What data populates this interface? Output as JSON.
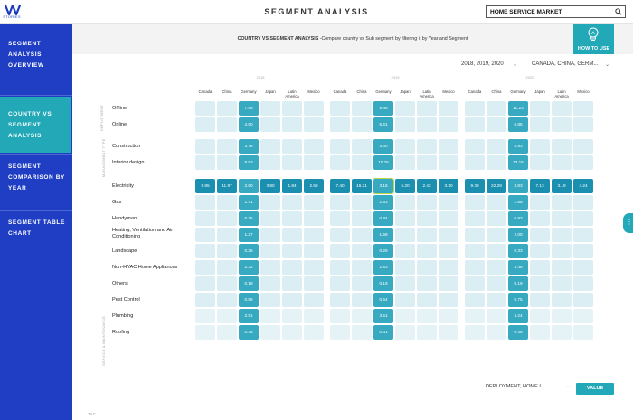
{
  "app": {
    "logo_sub": "STORIES",
    "page_title": "SEGMENT ANALYSIS",
    "market": "HOME SERVICE MARKET"
  },
  "colors": {
    "sidebar": "#1f3ec4",
    "accent": "#22a8b7",
    "cell_light": "#daeef3",
    "cell_highlight": "#37aac1"
  },
  "sidebar": {
    "items": [
      {
        "label": "SEGMENT ANALYSIS OVERVIEW",
        "lines": [
          "SEGMENT",
          "ANALYSIS",
          "OVERVIEW"
        ],
        "active": false
      },
      {
        "label": "COUNTRY VS SEGMENT ANALYSIS",
        "lines": [
          "COUNTRY VS",
          "SEGMENT",
          "ANALYSIS"
        ],
        "active": true
      },
      {
        "label": "SEGMENT COMPARISON BY YEAR",
        "lines": [
          "SEGMENT",
          "COMPARISON BY",
          "YEAR"
        ],
        "active": false
      },
      {
        "label": "SEGMENT TABLE CHART",
        "lines": [
          "SEGMENT TABLE",
          "CHART"
        ],
        "active": false
      }
    ]
  },
  "header": {
    "title_bold": "COUNTRY VS SEGMENT ANALYSIS",
    "title_rest": " -Compare country vs Sub segment by filtering it by Year and Segment",
    "how_to_use": "HOW TO USE"
  },
  "filters": {
    "years": "2018, 2019, 2020",
    "countries": "CANADA, CHINA, GERM..."
  },
  "matrix": {
    "years": [
      "2018",
      "2019",
      "2020"
    ],
    "countries": [
      "Canada",
      "China",
      "Germany",
      "Japan",
      "Latin America",
      "Mexico"
    ],
    "groups": [
      "DEPLOYMENT",
      "MANAGEMENT TYPE",
      "SERVICE & MAINTENANCE"
    ],
    "rows": [
      {
        "label": "Offline",
        "values": [
          [
            null,
            null,
            "7.99",
            null,
            null,
            null
          ],
          [
            null,
            null,
            "9.46",
            null,
            null,
            null
          ],
          [
            null,
            null,
            "11.23",
            null,
            null,
            null
          ]
        ]
      },
      {
        "label": "Online",
        "values": [
          [
            null,
            null,
            "4.60",
            null,
            null,
            null
          ],
          [
            null,
            null,
            "5.61",
            null,
            null,
            null
          ],
          [
            null,
            null,
            "6.85",
            null,
            null,
            null
          ]
        ]
      },
      {
        "label": "Construction",
        "values": [
          [
            null,
            null,
            "3.76",
            null,
            null,
            null
          ],
          [
            null,
            null,
            "4.30",
            null,
            null,
            null
          ],
          [
            null,
            null,
            "4.93",
            null,
            null,
            null
          ]
        ]
      },
      {
        "label": "Interior design",
        "values": [
          [
            null,
            null,
            "8.83",
            null,
            null,
            null
          ],
          [
            null,
            null,
            "10.76",
            null,
            null,
            null
          ],
          [
            null,
            null,
            "13.15",
            null,
            null,
            null
          ]
        ]
      },
      {
        "label": "Electricity",
        "values": [
          [
            "5.85",
            "11.97",
            "2.60",
            "3.80",
            "1.84",
            "2.59"
          ],
          [
            "7.40",
            "16.21",
            "3.15",
            "5.20",
            "2.42",
            "3.30"
          ],
          [
            "9.39",
            "22.28",
            "3.83",
            "7.13",
            "3.19",
            "4.24"
          ]
        ]
      },
      {
        "label": "Gas",
        "values": [
          [
            null,
            null,
            "1.41",
            null,
            null,
            null
          ],
          [
            null,
            null,
            "1.63",
            null,
            null,
            null
          ],
          [
            null,
            null,
            "1.88",
            null,
            null,
            null
          ]
        ]
      },
      {
        "label": "Handyman",
        "values": [
          [
            null,
            null,
            "0.75",
            null,
            null,
            null
          ],
          [
            null,
            null,
            "0.84",
            null,
            null,
            null
          ],
          [
            null,
            null,
            "0.93",
            null,
            null,
            null
          ]
        ]
      },
      {
        "label": "Heating, Ventilation and Air Conditioning",
        "values": [
          [
            null,
            null,
            "1.27",
            null,
            null,
            null
          ],
          [
            null,
            null,
            "1.59",
            null,
            null,
            null
          ],
          [
            null,
            null,
            "2.00",
            null,
            null,
            null
          ]
        ]
      },
      {
        "label": "Landscape",
        "values": [
          [
            null,
            null,
            "0.26",
            null,
            null,
            null
          ],
          [
            null,
            null,
            "0.29",
            null,
            null,
            null
          ],
          [
            null,
            null,
            "0.33",
            null,
            null,
            null
          ]
        ]
      },
      {
        "label": "Non-HVAC Home Appliances",
        "values": [
          [
            null,
            null,
            "2.32",
            null,
            null,
            null
          ],
          [
            null,
            null,
            "2.83",
            null,
            null,
            null
          ],
          [
            null,
            null,
            "3.46",
            null,
            null,
            null
          ]
        ]
      },
      {
        "label": "Others",
        "values": [
          [
            null,
            null,
            "0.18",
            null,
            null,
            null
          ],
          [
            null,
            null,
            "0.19",
            null,
            null,
            null
          ],
          [
            null,
            null,
            "0.19",
            null,
            null,
            null
          ]
        ]
      },
      {
        "label": "Pest Control",
        "values": [
          [
            null,
            null,
            "0.56",
            null,
            null,
            null
          ],
          [
            null,
            null,
            "0.64",
            null,
            null,
            null
          ],
          [
            null,
            null,
            "0.75",
            null,
            null,
            null
          ]
        ]
      },
      {
        "label": "Plumbing",
        "values": [
          [
            null,
            null,
            "2.91",
            null,
            null,
            null
          ],
          [
            null,
            null,
            "3.51",
            null,
            null,
            null
          ],
          [
            null,
            null,
            "4.24",
            null,
            null,
            null
          ]
        ]
      },
      {
        "label": "Roofing",
        "values": [
          [
            null,
            null,
            "0.36",
            null,
            null,
            null
          ],
          [
            null,
            null,
            "0.41",
            null,
            null,
            null
          ],
          [
            null,
            null,
            "0.48",
            null,
            null,
            null
          ]
        ]
      }
    ]
  },
  "bottom": {
    "segment_select": "DEPLOYMENT, HOME I...",
    "value_button": "VALUE",
    "footer_note": "T&C"
  }
}
